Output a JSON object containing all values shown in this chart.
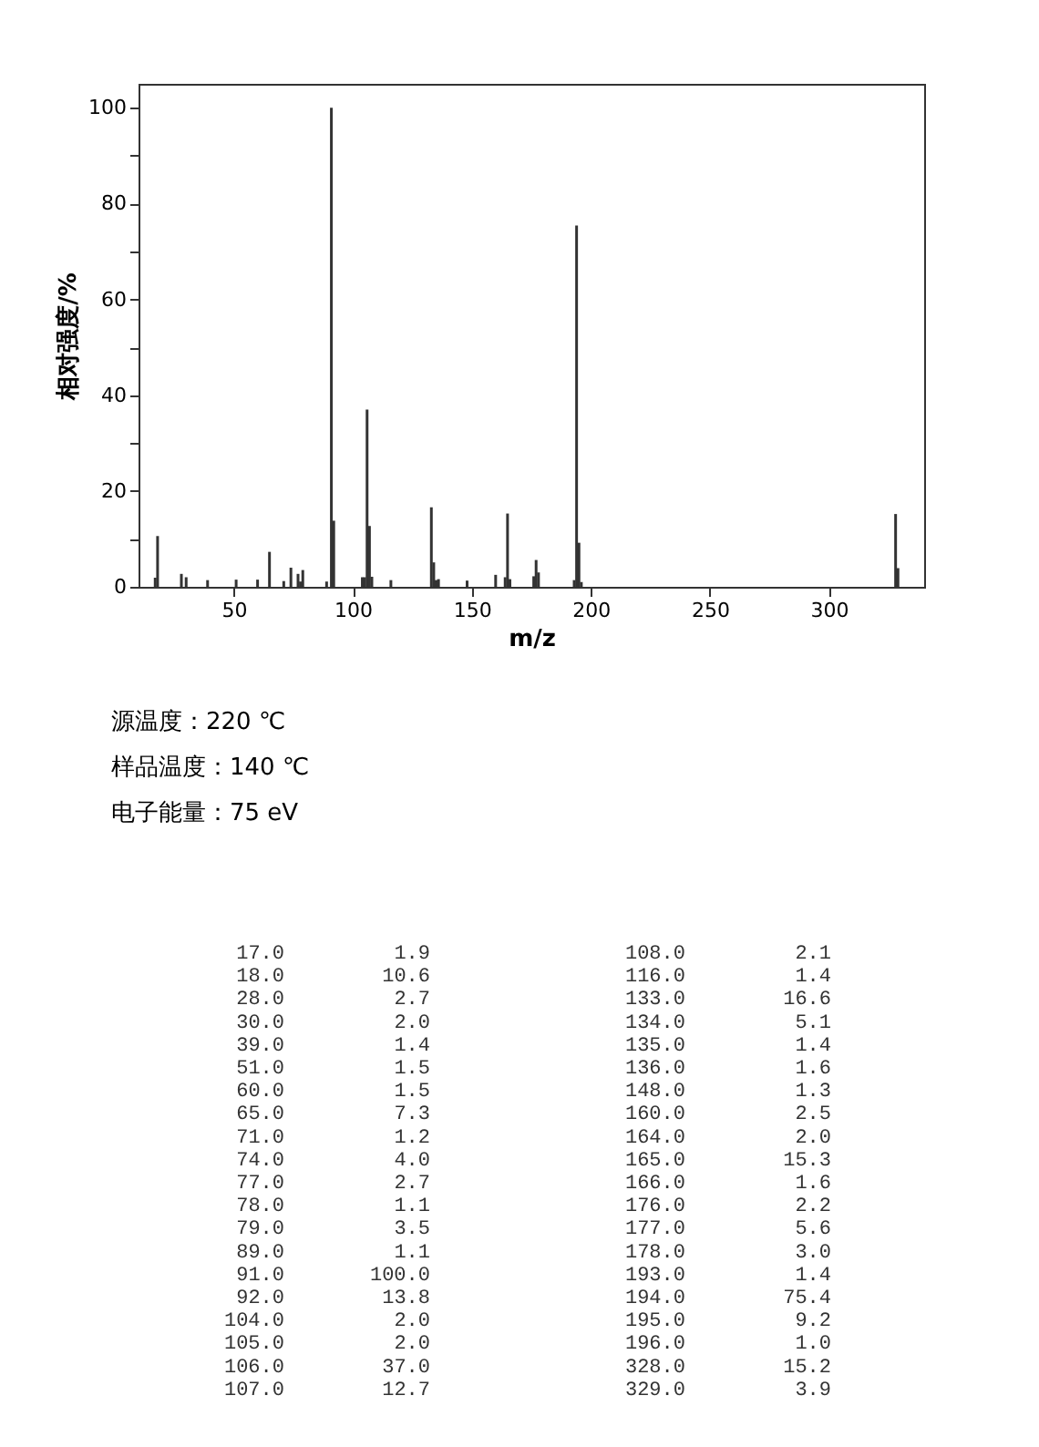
{
  "chart_data": [
    {
      "type": "bar",
      "xlabel": "m/z",
      "ylabel": "相对强度/%",
      "x": [
        17,
        18,
        28,
        30,
        39,
        51,
        60,
        65,
        71,
        74,
        77,
        78,
        79,
        89,
        91,
        92,
        104,
        105,
        106,
        107,
        108,
        116,
        133,
        134,
        135,
        136,
        148,
        160,
        164,
        165,
        166,
        176,
        177,
        178,
        193,
        194,
        195,
        196,
        328,
        329
      ],
      "series": [
        {
          "color": "#333333",
          "values": [
            1.9,
            10.6,
            2.7,
            2.0,
            1.4,
            1.5,
            1.5,
            7.3,
            1.2,
            4.0,
            2.7,
            1.1,
            3.5,
            1.1,
            100.0,
            13.8,
            2.0,
            2.0,
            37.0,
            12.7,
            2.1,
            1.4,
            16.6,
            5.1,
            1.4,
            1.6,
            1.3,
            2.5,
            2.0,
            15.3,
            1.6,
            2.2,
            5.6,
            3.0,
            1.4,
            75.4,
            9.2,
            1.0,
            15.2,
            3.9
          ]
        }
      ],
      "xlim": [
        10,
        340
      ],
      "xticks": [
        50,
        100,
        150,
        200,
        250,
        300
      ],
      "ylim": [
        0,
        105
      ],
      "yticks": [
        0,
        {
          "value": 10,
          "label": null
        },
        20,
        {
          "value": 30,
          "label": null
        },
        40,
        {
          "value": 50,
          "label": null
        },
        60,
        {
          "value": 70,
          "label": null
        },
        80,
        {
          "value": 90,
          "label": null
        },
        100
      ],
      "grid": false,
      "annotations": [
        "源温度：220 ℃",
        "样品温度：140 ℃",
        "电子能量：75 eV"
      ]
    },
    {
      "type": "other",
      "annotations": [
        "17.0",
        "1.9",
        "18.0",
        "10.6",
        "28.0",
        "2.7",
        "30.0",
        "2.0",
        "39.0",
        "1.4",
        "51.0",
        "1.5",
        "60.0",
        "1.5",
        "65.0",
        "7.3",
        "71.0",
        "1.2",
        "74.0",
        "4.0",
        "77.0",
        "2.7",
        "78.0",
        "1.1",
        "79.0",
        "3.5",
        "89.0",
        "1.1",
        "91.0",
        "100.0",
        "92.0",
        "13.8",
        "104.0",
        "2.0",
        "105.0",
        "2.0",
        "106.0",
        "37.0",
        "107.0",
        "12.7",
        "108.0",
        "2.1",
        "116.0",
        "1.4",
        "133.0",
        "16.6",
        "134.0",
        "5.1",
        "135.0",
        "1.4",
        "136.0",
        "1.6",
        "148.0",
        "1.3",
        "160.0",
        "2.5",
        "164.0",
        "2.0",
        "165.0",
        "15.3",
        "166.0",
        "1.6",
        "176.0",
        "2.2",
        "177.0",
        "5.6",
        "178.0",
        "3.0",
        "193.0",
        "1.4",
        "194.0",
        "75.4",
        "195.0",
        "9.2",
        "196.0",
        "1.0",
        "328.0",
        "15.2",
        "329.0",
        "3.9"
      ]
    }
  ]
}
